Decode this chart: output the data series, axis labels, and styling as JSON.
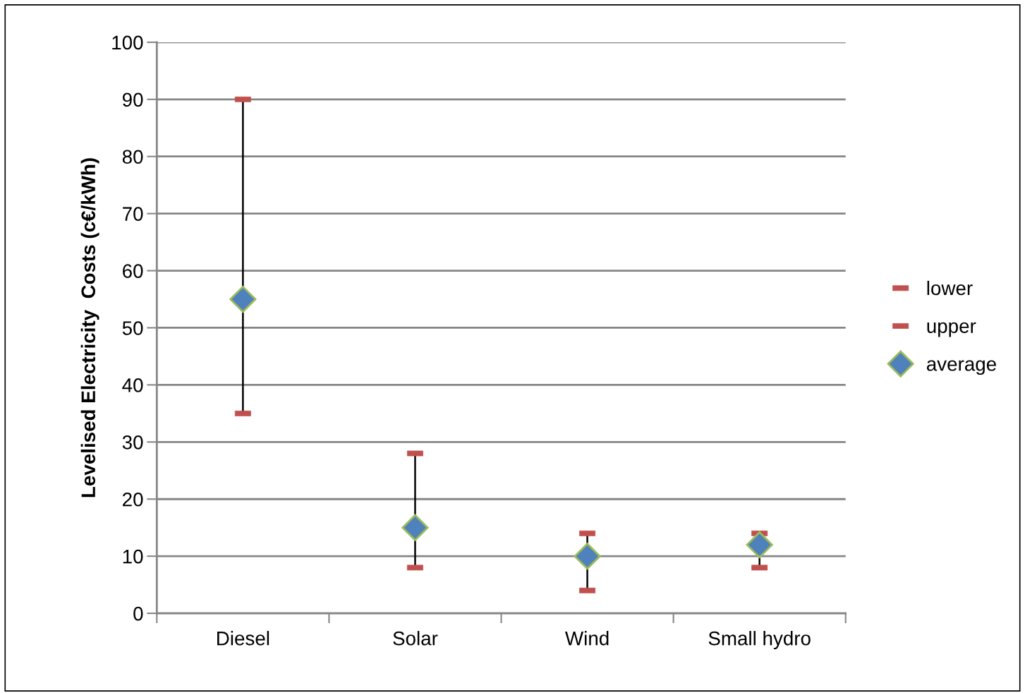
{
  "chart_data": {
    "type": "scatter",
    "ylabel": "Levelised Electricity  Costs (c€/kWh)",
    "categories": [
      "Diesel",
      "Solar",
      "Wind",
      "Small hydro"
    ],
    "series": [
      {
        "name": "lower",
        "color": "#c0504d",
        "marker": "square",
        "values": [
          35,
          8,
          4,
          8
        ]
      },
      {
        "name": "upper",
        "color": "#c0504d",
        "marker": "square",
        "values": [
          90,
          28,
          14,
          14
        ]
      },
      {
        "name": "average",
        "color": "#4f81bd",
        "marker": "diamond",
        "values": [
          55,
          15,
          10,
          12
        ]
      }
    ],
    "ylim": [
      0,
      100
    ],
    "yticks": [
      0,
      10,
      20,
      30,
      40,
      50,
      60,
      70,
      80,
      90,
      100
    ],
    "grid": "y",
    "legend": "right"
  }
}
